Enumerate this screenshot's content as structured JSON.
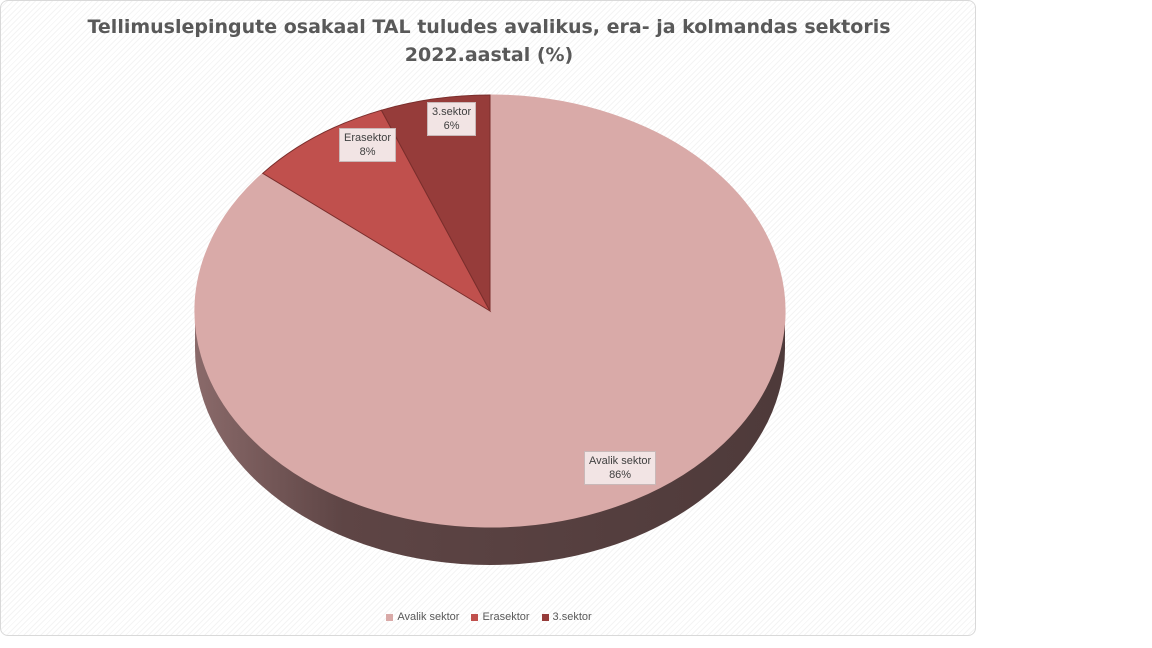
{
  "chart_data": {
    "type": "pie",
    "title": "Tellimuslepingute osakaal TAL tuludes avalikus, era- ja kolmandas sektoris 2022.aastal (%)",
    "categories": [
      "Avalik sektor",
      "Erasektor",
      "3.sektor"
    ],
    "values": [
      86,
      8,
      6
    ],
    "colors": [
      "#d9aaa8",
      "#c0504d",
      "#963c3a"
    ],
    "data_labels": [
      {
        "category": "Avalik sektor",
        "text": "Avalik sektor",
        "value": "86%"
      },
      {
        "category": "Erasektor",
        "text": "Erasektor",
        "value": "8%"
      },
      {
        "category": "3.sektor",
        "text": "3.sektor",
        "value": "6%"
      }
    ],
    "legend": {
      "position": "bottom",
      "items": [
        "Avalik sektor",
        "Erasektor",
        "3.sektor"
      ]
    },
    "style": "3d-pie"
  }
}
